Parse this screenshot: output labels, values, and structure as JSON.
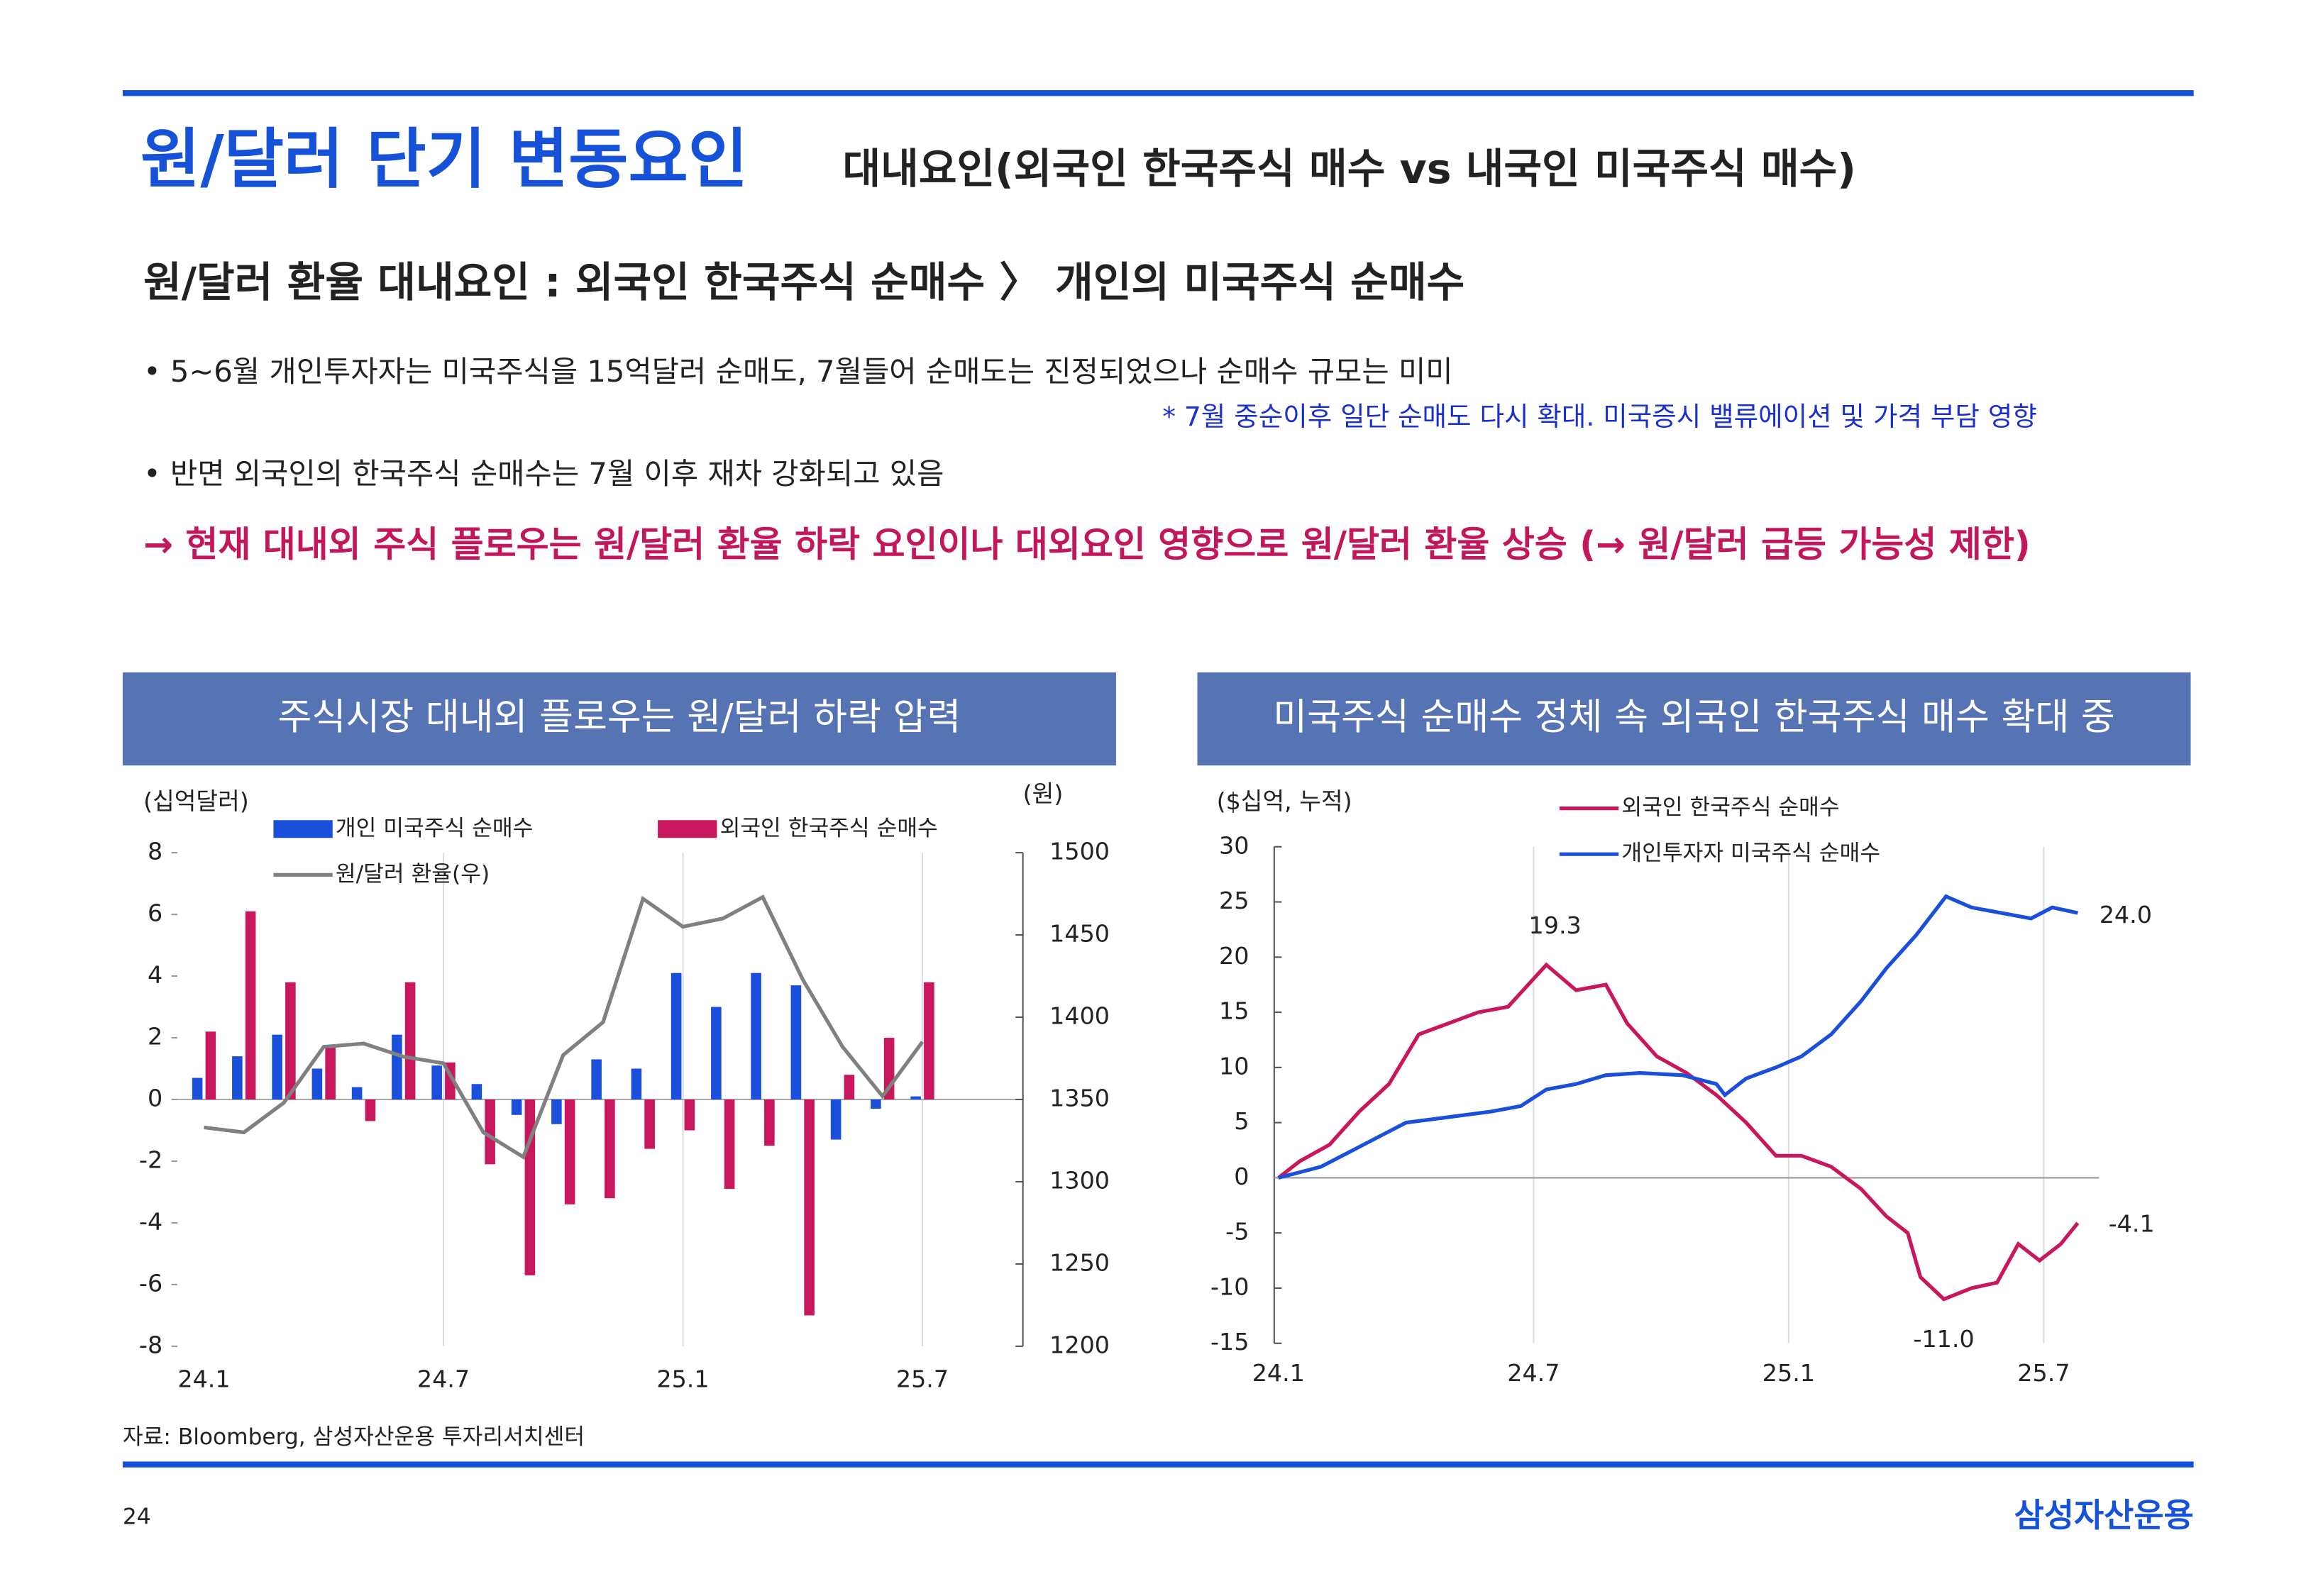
{
  "header": {
    "title": "원/달러 단기 변동요인",
    "subtitle": "대내요인(외국인 한국주식 매수 vs 내국인 미국주식 매수)"
  },
  "headline": "원/달러 환율 대내요인 : 외국인 한국주식 순매수 〉 개인의 미국주식 순매수",
  "bullets": [
    "• 5~6월 개인투자자는 미국주식을 15억달러 순매도, 7월들어 순매도는 진정되었으나 순매수 규모는 미미",
    "• 반면 외국인의 한국주식 순매수는 7월 이후 재차 강화되고 있음"
  ],
  "note": "* 7월 중순이후 일단 순매도 다시 확대. 미국증시 밸류에이션 및 가격 부담 영향",
  "conclusion": "→ 현재 대내외 주식 플로우는 원/달러 환율 하락 요인이나 대외요인 영향으로 원/달러 환율 상승 (→ 원/달러 급등 가능성 제한)",
  "chart_data": [
    {
      "type": "bar",
      "title": "주식시장 대내외 플로우는 원/달러 하락 압력",
      "y_label": "(십억달러)",
      "y2_label": "(원)",
      "categories": [
        "24.1",
        null,
        null,
        null,
        null,
        null,
        "24.7",
        null,
        null,
        null,
        null,
        null,
        "25.1",
        null,
        null,
        null,
        null,
        null,
        "25.7"
      ],
      "series": [
        {
          "name": "개인 미국주식 순매수",
          "color": "#1a4fdb",
          "values": [
            0.7,
            1.4,
            2.1,
            1.0,
            0.4,
            2.1,
            1.1,
            0.5,
            -0.5,
            -0.8,
            1.3,
            1.0,
            4.1,
            3.0,
            4.1,
            3.7,
            -1.3,
            -0.3,
            0.1
          ]
        },
        {
          "name": "외국인 한국주식 순매수",
          "color": "#c8175d",
          "values": [
            2.2,
            6.1,
            3.8,
            1.7,
            -0.7,
            3.8,
            1.2,
            -2.1,
            -5.7,
            -3.4,
            -3.2,
            -1.6,
            -1.0,
            -2.9,
            -1.5,
            -7.0,
            0.8,
            2.0,
            3.8
          ]
        },
        {
          "name": "원/달러 환율(우)",
          "color": "#808080",
          "type": "line",
          "axis": "y2",
          "values": [
            1333,
            1330,
            1348,
            1382,
            1384,
            1376,
            1372,
            1330,
            1315,
            1377,
            1397,
            1472,
            1455,
            1460,
            1473,
            1423,
            1382,
            1352,
            1385
          ]
        }
      ],
      "ylim": [
        -8,
        8
      ],
      "yticks": [
        -8,
        -6,
        -4,
        -2,
        0,
        2,
        4,
        6,
        8
      ],
      "y2lim": [
        1200,
        1500
      ],
      "y2ticks": [
        1200,
        1250,
        1300,
        1350,
        1400,
        1450,
        1500
      ],
      "grid": true
    },
    {
      "type": "line",
      "title": "미국주식 순매수 정체 속 외국인 한국주식 매수 확대 중",
      "y_label": "($십억, 누적)",
      "xlim": [
        -0.1,
        19.3
      ],
      "xticks": [
        {
          "value": 0,
          "label": "24.1"
        },
        {
          "value": 6,
          "label": "24.7"
        },
        {
          "value": 12,
          "label": "25.1"
        },
        {
          "value": 18,
          "label": "25.7"
        }
      ],
      "ylim": [
        -15,
        30
      ],
      "yticks": [
        -15,
        -10,
        -5,
        0,
        5,
        10,
        15,
        20,
        25,
        30
      ],
      "grid": true,
      "series": [
        {
          "name": "외국인 한국주식 순매수",
          "color": "#c8175d",
          "x": [
            0,
            0.5,
            1.2,
            1.9,
            2.6,
            3.3,
            4.0,
            4.7,
            5.4,
            6.3,
            7.0,
            7.7,
            8.2,
            8.9,
            9.6,
            10.3,
            11.0,
            11.7,
            12.3,
            13.0,
            13.7,
            14.3,
            14.8,
            15.1,
            15.65,
            16.3,
            16.9,
            17.4,
            17.9,
            18.4,
            18.8
          ],
          "values": [
            0,
            1.5,
            3,
            6,
            8.5,
            13,
            14,
            15,
            15.5,
            19.3,
            17,
            17.5,
            14,
            11,
            9.5,
            7.5,
            5,
            2,
            2,
            1,
            -1,
            -3.5,
            -5,
            -9,
            -11,
            -10,
            -9.5,
            -6,
            -7.5,
            -6,
            -4.1
          ]
        },
        {
          "name": "개인투자자 미국주식 순매수",
          "color": "#1a4fdb",
          "x": [
            0,
            1.0,
            2.0,
            3.0,
            4.0,
            5.0,
            5.7,
            6.3,
            7.0,
            7.7,
            8.5,
            9.5,
            10.3,
            10.5,
            11.0,
            11.7,
            12.3,
            13.0,
            13.7,
            14.3,
            15.0,
            15.7,
            16.3,
            17.0,
            17.7,
            18.2,
            18.8
          ],
          "values": [
            0,
            1,
            3,
            5,
            5.5,
            6,
            6.5,
            8,
            8.5,
            9.3,
            9.5,
            9.3,
            8.5,
            7.5,
            9,
            10,
            11,
            13,
            16,
            19,
            22,
            25.5,
            24.5,
            24,
            23.5,
            24.5,
            24.0
          ]
        }
      ],
      "annotations": [
        "19.3",
        "24.0",
        "-4.1",
        "-11.0"
      ]
    }
  ],
  "source": "자료: Bloomberg, 삼성자산운용 투자리서치센터",
  "page_number": "24",
  "logo": "삼성자산운용"
}
